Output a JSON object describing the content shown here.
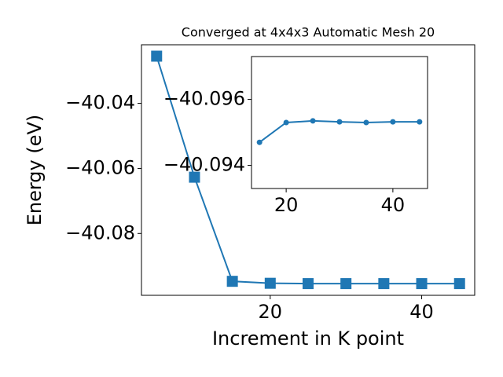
{
  "chart_data": [
    {
      "type": "line",
      "title": "Converged at 4x4x3 Automatic Mesh 20",
      "x_label": "Increment in K point",
      "y_label": "Energy (eV)",
      "x": [
        5,
        10,
        15,
        20,
        25,
        30,
        35,
        40,
        45
      ],
      "series": [
        {
          "color": "#1f77b4",
          "marker": "square",
          "values": [
            -40.0255,
            -40.0627,
            -40.0947,
            -40.0953,
            -40.0954,
            -40.0954,
            -40.0954,
            -40.0954,
            -40.0954
          ]
        }
      ],
      "xlim": [
        3,
        47
      ],
      "xticks": [
        20,
        40
      ],
      "ylim": [
        -40.099,
        -40.022
      ],
      "yticks": [
        {
          "value": -40.08,
          "label": "−40.08"
        },
        {
          "value": -40.06,
          "label": "−40.06"
        },
        {
          "value": -40.04,
          "label": "−40.04"
        }
      ]
    },
    {
      "type": "line",
      "x": [
        15,
        20,
        25,
        30,
        35,
        40,
        45
      ],
      "series": [
        {
          "color": "#1f77b4",
          "marker": "circle",
          "values": [
            -40.0947,
            -40.0953,
            -40.09535,
            -40.09532,
            -40.0953,
            -40.09532,
            -40.09532
          ]
        }
      ],
      "xlim": [
        13.5,
        46.5
      ],
      "xticks": [
        20,
        40
      ],
      "ylim": [
        -40.0933,
        -40.0973
      ],
      "yticks": [
        {
          "value": -40.094,
          "label": "−40.094"
        },
        {
          "value": -40.096,
          "label": "−40.096"
        }
      ]
    }
  ]
}
